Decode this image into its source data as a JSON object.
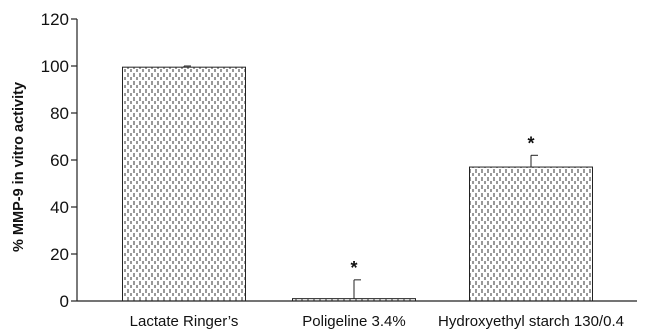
{
  "chart_data": {
    "type": "bar",
    "categories": [
      "Lactate Ringer’s",
      "Poligeline 3.4%",
      "Hydroxyethyl starch 130/0.4"
    ],
    "values": [
      99.5,
      1,
      57
    ],
    "errors": [
      0.5,
      8,
      5
    ],
    "significance": [
      "",
      "*",
      "*"
    ],
    "title": "",
    "xlabel": "",
    "ylabel": "% MMP-9 in vitro activity",
    "ylim": [
      0,
      120
    ],
    "yticks": [
      "0",
      "20",
      "40",
      "60",
      "80",
      "100",
      "120"
    ],
    "grid": false,
    "legend": "none",
    "bar_fill": "vertical dashed pattern",
    "colors": {
      "bar_stroke": "#222222",
      "axis": "#222222",
      "pattern": "#333333"
    }
  }
}
